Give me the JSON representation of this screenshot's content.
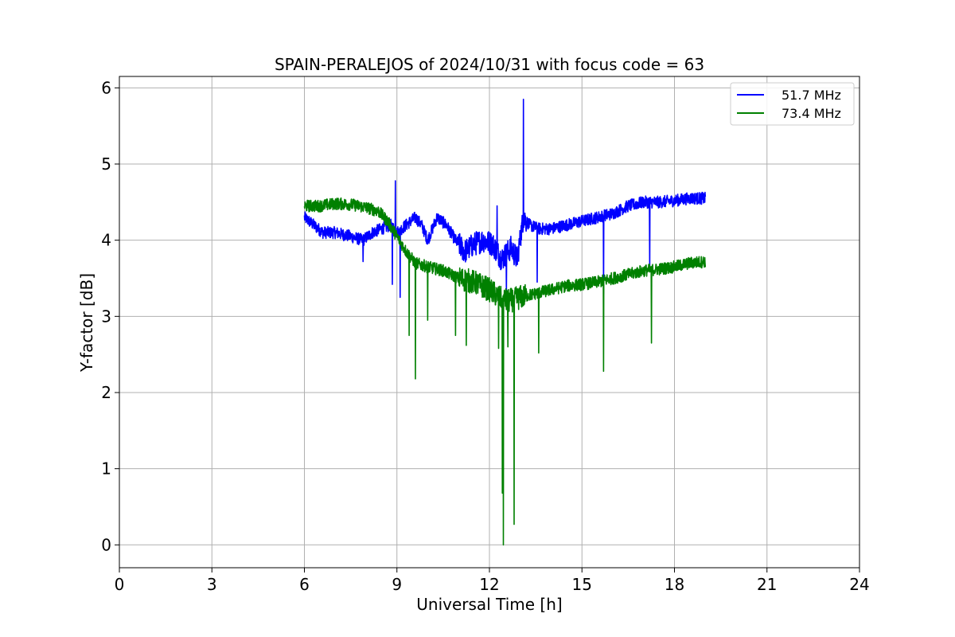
{
  "chart_data": {
    "type": "line",
    "title": "SPAIN-PERALEJOS of 2024/10/31 with focus code = 63",
    "xlabel": "Universal Time [h]",
    "ylabel": "Y-factor [dB]",
    "xlim": [
      0,
      24
    ],
    "ylim": [
      -0.3,
      6.15
    ],
    "xticks": [
      0,
      3,
      6,
      9,
      12,
      15,
      18,
      21,
      24
    ],
    "yticks": [
      0,
      1,
      2,
      3,
      4,
      5,
      6
    ],
    "grid": true,
    "legend_position": "top-right",
    "series": [
      {
        "name": "51.7 MHz",
        "color": "#0000ff",
        "x": [
          6.0,
          6.3,
          6.6,
          7.0,
          7.5,
          7.9,
          8.2,
          8.5,
          8.8,
          9.0,
          9.3,
          9.6,
          9.8,
          10.0,
          10.3,
          10.6,
          10.9,
          11.2,
          11.5,
          11.8,
          12.1,
          12.4,
          12.7,
          12.9,
          13.1,
          13.3,
          13.6,
          14.0,
          14.5,
          15.0,
          15.5,
          16.0,
          16.5,
          17.0,
          17.5,
          18.0,
          18.5,
          19.0
        ],
        "y": [
          4.3,
          4.2,
          4.1,
          4.1,
          4.05,
          4.0,
          4.1,
          4.15,
          4.2,
          4.1,
          4.2,
          4.3,
          4.2,
          4.0,
          4.3,
          4.2,
          4.0,
          3.85,
          3.95,
          4.0,
          3.95,
          3.75,
          3.9,
          3.75,
          4.3,
          4.2,
          4.15,
          4.15,
          4.2,
          4.25,
          4.3,
          4.35,
          4.45,
          4.5,
          4.5,
          4.52,
          4.55,
          4.55
        ],
        "spikes": [
          {
            "x": 7.9,
            "y": 3.72
          },
          {
            "x": 8.85,
            "y": 3.42
          },
          {
            "x": 8.95,
            "y": 4.78
          },
          {
            "x": 9.1,
            "y": 3.25
          },
          {
            "x": 12.25,
            "y": 4.45
          },
          {
            "x": 12.55,
            "y": 3.3
          },
          {
            "x": 13.1,
            "y": 5.85
          },
          {
            "x": 13.55,
            "y": 3.45
          },
          {
            "x": 15.7,
            "y": 3.3
          },
          {
            "x": 17.2,
            "y": 3.6
          }
        ]
      },
      {
        "name": "73.4 MHz",
        "color": "#008000",
        "x": [
          6.0,
          6.5,
          7.0,
          7.5,
          8.0,
          8.4,
          8.7,
          9.0,
          9.3,
          9.6,
          10.0,
          10.5,
          11.0,
          11.5,
          12.0,
          12.3,
          12.6,
          13.0,
          13.5,
          14.0,
          14.5,
          15.0,
          15.5,
          16.0,
          16.5,
          17.0,
          17.5,
          18.0,
          18.5,
          19.0
        ],
        "y": [
          4.45,
          4.45,
          4.48,
          4.47,
          4.43,
          4.38,
          4.25,
          4.05,
          3.85,
          3.7,
          3.65,
          3.6,
          3.5,
          3.45,
          3.35,
          3.25,
          3.2,
          3.25,
          3.3,
          3.35,
          3.4,
          3.42,
          3.45,
          3.5,
          3.55,
          3.6,
          3.62,
          3.65,
          3.7,
          3.72
        ],
        "spikes": [
          {
            "x": 9.4,
            "y": 2.75
          },
          {
            "x": 9.6,
            "y": 2.18
          },
          {
            "x": 10.0,
            "y": 2.95
          },
          {
            "x": 10.9,
            "y": 2.75
          },
          {
            "x": 11.25,
            "y": 2.62
          },
          {
            "x": 12.3,
            "y": 2.58
          },
          {
            "x": 12.42,
            "y": 0.68
          },
          {
            "x": 12.45,
            "y": 0.0
          },
          {
            "x": 12.6,
            "y": 2.6
          },
          {
            "x": 12.8,
            "y": 0.27
          },
          {
            "x": 13.6,
            "y": 2.52
          },
          {
            "x": 15.7,
            "y": 2.28
          },
          {
            "x": 17.25,
            "y": 2.65
          }
        ]
      }
    ]
  }
}
